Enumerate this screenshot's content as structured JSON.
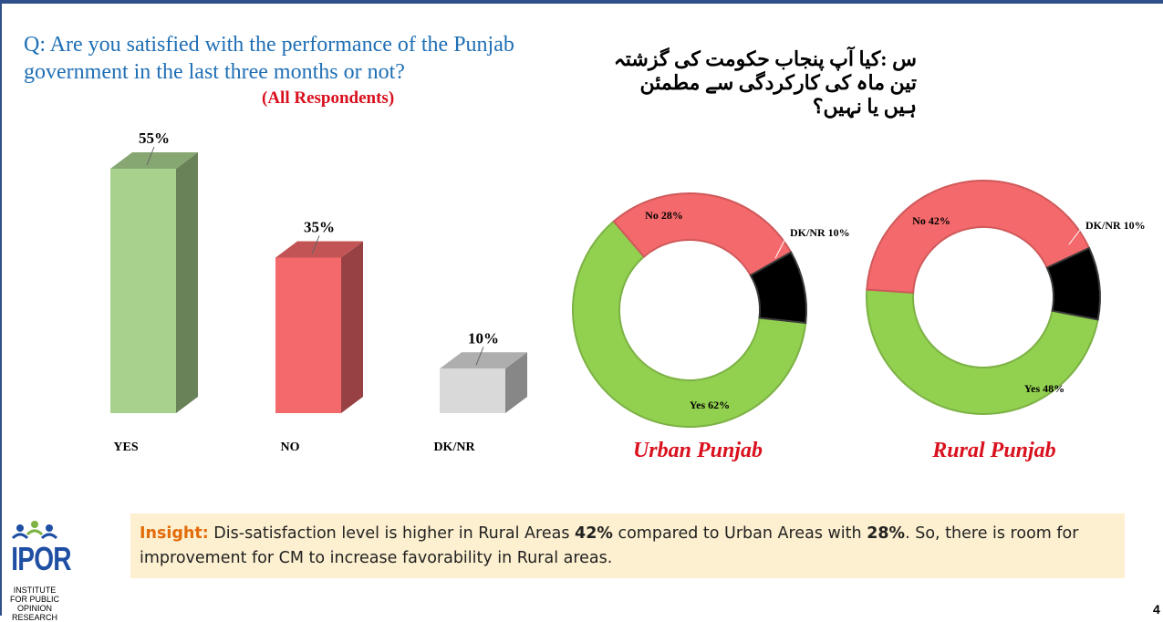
{
  "header": {
    "question_en": "Q: Are you satisfied with the performance of the Punjab government in the last three months or not?",
    "subtitle": "(All Respondents)",
    "question_ur": "س :کیا آپ پنجاب حکومت کی گزشتہ تین ماہ کی کارکردگی سے مطمئن ہیں یا نہیں؟"
  },
  "chart_data": [
    {
      "type": "bar",
      "categories": [
        "YES",
        "NO",
        "DK/NR"
      ],
      "values": [
        55,
        35,
        10
      ],
      "data_labels": [
        "55%",
        "35%",
        "10%"
      ],
      "colors": [
        "#a9d18e",
        "#f4696b",
        "#d9d9d9"
      ],
      "ylim": [
        0,
        60
      ]
    },
    {
      "type": "pie",
      "title": "Urban Punjab",
      "labels": [
        "Yes 62%",
        "No 28%",
        "DK/NR 10%"
      ],
      "categories": [
        "Yes",
        "No",
        "DK/NR"
      ],
      "values": [
        62,
        28,
        10
      ],
      "colors": [
        "#92d050",
        "#f4696b",
        "#000000"
      ]
    },
    {
      "type": "pie",
      "title": "Rural Punjab",
      "labels": [
        "Yes 48%",
        "No 42%",
        "DK/NR  10%"
      ],
      "categories": [
        "Yes",
        "No",
        "DK/NR"
      ],
      "values": [
        48,
        42,
        10
      ],
      "colors": [
        "#92d050",
        "#f4696b",
        "#000000"
      ]
    }
  ],
  "insight": {
    "label": "Insight:",
    "text1": " Dis-satisfaction level is higher in Rural Areas ",
    "v1": "42%",
    "text2": " compared to Urban Areas with ",
    "v2": "28%",
    "text3": ". So, there is room for improvement for CM to increase favorability in Rural areas."
  },
  "logo": {
    "name": "IPOR",
    "line1": "INSTITUTE",
    "line2": "FOR PUBLIC",
    "line3": "OPINION",
    "line4": "RESEARCH"
  },
  "page_number": "4"
}
